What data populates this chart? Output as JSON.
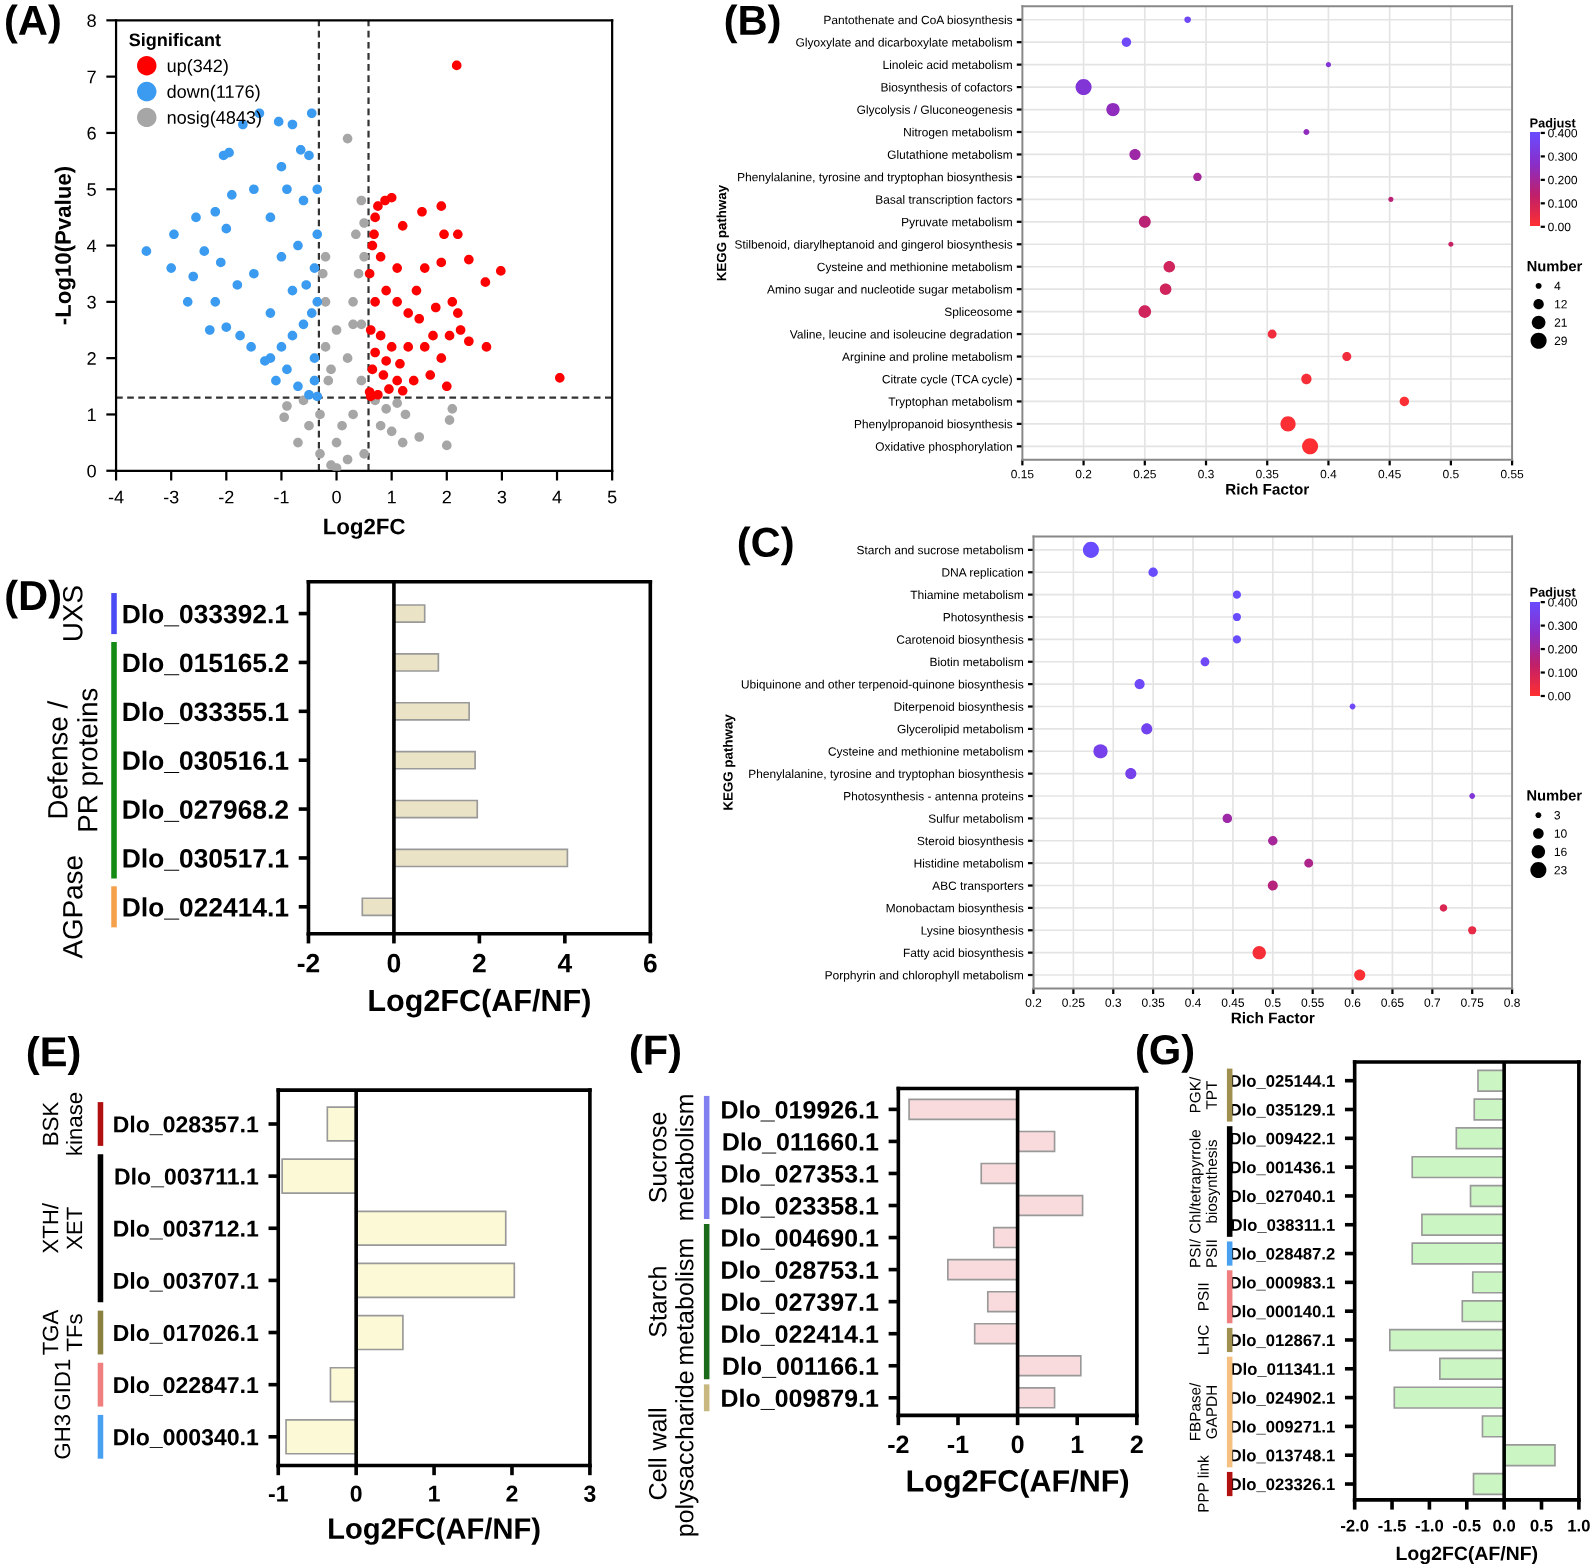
{
  "chart_data": [
    {
      "type": "scatter",
      "annotations": [
        "(A)"
      ],
      "xlabel": "Log2FC",
      "ylabel": "-Log10(Pvalue)",
      "legend_title": "Significant",
      "legend": "top left",
      "marker": "circle",
      "xlim": [
        -4,
        5
      ],
      "xticks": [
        -4,
        -3,
        -2,
        -1,
        0,
        1,
        2,
        3,
        4,
        5
      ],
      "ylim": [
        0,
        8
      ],
      "yticks": [
        0,
        1,
        2,
        3,
        4,
        5,
        6,
        7,
        8
      ],
      "ref_lines": [
        {
          "axis": "x",
          "value": -0.32,
          "color": "#333333",
          "line_style": "dashed"
        },
        {
          "axis": "x",
          "value": 0.58,
          "color": "#333333",
          "line_style": "dashed"
        },
        {
          "axis": "y",
          "value": 1.3,
          "color": "#333333",
          "line_style": "dashed"
        }
      ],
      "series": [
        {
          "name": "up(342)",
          "color": "#ff0000",
          "x": [
            2.18,
            4.05,
            2.98,
            2.7,
            2.4,
            2.72,
            2.25,
            2.2,
            1.95,
            1.9,
            1.55,
            1.2,
            1.0,
            0.88,
            0.75,
            0.7,
            0.65,
            0.6,
            0.8,
            1.1,
            1.6,
            1.9,
            2.1,
            2.2,
            1.8,
            1.5,
            1.3,
            1.1,
            0.9,
            0.7,
            0.62,
            0.8,
            1.0,
            1.3,
            1.6,
            1.9,
            2.05,
            2.4,
            0.65,
            0.85,
            1.1,
            1.4,
            1.7,
            2.0,
            0.6,
            0.75,
            0.95,
            1.2,
            0.7,
            0.9,
            1.15,
            0.62,
            1.75,
            1.45,
            0.68
          ],
          "values": [
            7.2,
            1.65,
            3.55,
            3.35,
            3.75,
            2.2,
            2.5,
            4.2,
            4.2,
            4.7,
            4.6,
            4.35,
            4.85,
            4.8,
            4.7,
            4.5,
            4.0,
            3.5,
            3.8,
            3.6,
            3.6,
            3.7,
            3.0,
            2.8,
            2.9,
            2.7,
            2.8,
            3.0,
            3.2,
            3.0,
            2.5,
            2.4,
            2.2,
            2.2,
            2.2,
            2.0,
            2.4,
            2.3,
            1.8,
            1.7,
            1.6,
            1.6,
            1.7,
            1.5,
            1.4,
            1.35,
            1.45,
            1.42,
            2.1,
            1.95,
            1.9,
            1.32,
            2.4,
            3.2,
            4.2
          ]
        },
        {
          "name": "down(1176)",
          "color": "#3a9bf0",
          "x": [
            -3.45,
            -3.0,
            -2.95,
            -2.7,
            -2.6,
            -2.55,
            -2.3,
            -2.2,
            -2.05,
            -1.95,
            -2.0,
            -1.7,
            -1.75,
            -1.4,
            -1.05,
            -0.8,
            -0.45,
            -0.5,
            -0.65,
            -1.0,
            -1.5,
            -1.9,
            -2.1,
            -2.4,
            -1.8,
            -1.5,
            -1.2,
            -1.2,
            -1.55,
            -1.2,
            -1.0,
            -0.9,
            -0.7,
            -0.5,
            -0.35,
            -0.4,
            -0.45,
            -0.4,
            -0.35,
            -0.6,
            -0.7,
            -0.8,
            -1.0,
            -0.6,
            -0.8,
            -0.35,
            -0.4,
            -1.3,
            -0.9,
            -2.0,
            -2.2,
            -1.1,
            -0.55,
            -0.35
          ],
          "values": [
            3.9,
            3.6,
            4.2,
            3.0,
            3.45,
            4.5,
            2.5,
            4.6,
            5.6,
            5.65,
            2.55,
            6.15,
            2.4,
            6.35,
            6.2,
            6.15,
            6.35,
            5.6,
            5.7,
            5.4,
            5.0,
            4.9,
            3.7,
            3.9,
            3.3,
            3.5,
            4.5,
            2.8,
            2.2,
            2.0,
            2.2,
            1.8,
            1.5,
            1.35,
            1.32,
            2.0,
            2.8,
            3.6,
            4.2,
            4.8,
            4.0,
            3.2,
            3.8,
            2.6,
            2.4,
            5.0,
            1.6,
            1.95,
            5.0,
            4.3,
            3.0,
            1.6,
            3.3,
            3.0
          ]
        },
        {
          "name": "nosig(4843)",
          "color": "#a6a6a6",
          "x": [
            0.2,
            0.45,
            0.5,
            0.35,
            0.5,
            -0.2,
            -0.25,
            0.4,
            0.3,
            -0.2,
            0.0,
            0.45,
            -0.2,
            0.2,
            -0.15,
            0.45,
            0.3,
            -0.3,
            0.0,
            0.2,
            -0.1,
            0.1,
            -0.5,
            0.8,
            1.0,
            1.2,
            1.5,
            1.25,
            1.1,
            2.1,
            2.05,
            2.0,
            -0.9,
            -0.95,
            -0.7,
            -0.6,
            0.7,
            0.9,
            0.5,
            -0.3,
            0.0,
            -0.1,
            0.3
          ],
          "values": [
            5.9,
            4.8,
            4.4,
            4.2,
            3.8,
            3.8,
            3.5,
            3.5,
            3.0,
            3.0,
            2.5,
            2.6,
            2.2,
            2.0,
            1.6,
            1.6,
            1.0,
            1.0,
            0.5,
            0.2,
            0.1,
            0.8,
            0.8,
            0.8,
            0.7,
            0.5,
            0.6,
            1.0,
            1.2,
            1.1,
            0.9,
            0.45,
            1.15,
            0.95,
            0.5,
            1.25,
            1.25,
            1.1,
            0.3,
            0.3,
            0.05,
            1.8,
            2.6
          ]
        }
      ]
    },
    {
      "type": "bubble",
      "orientation": "horizontal",
      "annotations": [
        "(B)"
      ],
      "xlabel": "Rich Factor",
      "ylabel": "KEGG pathway",
      "categories": [
        "Pantothenate and CoA biosynthesis",
        "Glyoxylate and dicarboxylate metabolism",
        "Linoleic acid metabolism",
        "Biosynthesis of cofactors",
        "Glycolysis / Gluconeogenesis",
        "Nitrogen metabolism",
        "Glutathione metabolism",
        "Phenylalanine, tyrosine and tryptophan biosynthesis",
        "Basal transcription factors",
        "Pyruvate metabolism",
        "Stilbenoid, diarylheptanoid and gingerol biosynthesis",
        "Cysteine and methionine metabolism",
        "Amino sugar and nucleotide sugar metabolism",
        "Spliceosome",
        "Valine, leucine and isoleucine degradation",
        "Arginine and proline metabolism",
        "Citrate cycle (TCA cycle)",
        "Tryptophan metabolism",
        "Phenylpropanoid biosynthesis",
        "Oxidative phosphorylation"
      ],
      "values": [
        0.285,
        0.235,
        0.4,
        0.2,
        0.224,
        0.382,
        0.242,
        0.293,
        0.451,
        0.25,
        0.5,
        0.27,
        0.267,
        0.25,
        0.354,
        0.415,
        0.382,
        0.462,
        0.367,
        0.385
      ],
      "sizes": [
        5,
        10,
        3,
        29,
        20,
        4,
        14,
        8,
        3,
        16,
        3,
        15,
        15,
        18,
        9,
        9,
        12,
        10,
        26,
        29
      ],
      "cvalues": [
        0.38,
        0.38,
        0.3,
        0.3,
        0.25,
        0.25,
        0.22,
        0.2,
        0.15,
        0.15,
        0.12,
        0.1,
        0.1,
        0.1,
        0.03,
        0.03,
        0.02,
        0.01,
        0.01,
        0.005
      ],
      "size_legend": [
        4,
        12,
        21,
        29
      ],
      "legend_title": "Number",
      "clabel": "Padjust",
      "clim": [
        0,
        0.4
      ],
      "cticks": [
        {
          "value": 0,
          "label": "0.00"
        },
        {
          "value": 0.1,
          "label": "0.100"
        },
        {
          "value": 0.2,
          "label": "0.200"
        },
        {
          "value": 0.3,
          "label": "0.300"
        },
        {
          "value": 0.4,
          "label": "0.400"
        }
      ],
      "xlim": [
        0.15,
        0.55
      ],
      "xticks": [
        0.15,
        0.2,
        0.25,
        0.3,
        0.35,
        0.4,
        0.45,
        0.5,
        0.55
      ],
      "grid": true
    },
    {
      "type": "bubble",
      "orientation": "horizontal",
      "annotations": [
        "(C)"
      ],
      "xlabel": "Rich Factor",
      "ylabel": "KEGG pathway",
      "categories": [
        "Starch and sucrose metabolism",
        "DNA replication",
        "Thiamine metabolism",
        "Photosynthesis",
        "Carotenoid biosynthesis",
        "Biotin metabolism",
        "Ubiquinone and other terpenoid-quinone biosynthesis",
        "Diterpenoid biosynthesis",
        "Glycerolipid metabolism",
        "Cysteine and methionine metabolism",
        "Phenylalanine, tyrosine and tryptophan biosynthesis",
        "Photosynthesis - antenna proteins",
        "Sulfur metabolism",
        "Steroid biosynthesis",
        "Histidine metabolism",
        "ABC transporters",
        "Monobactam biosynthesis",
        "Lysine biosynthesis",
        "Fatty acid biosynthesis",
        "Porphyrin and chlorophyll metabolism"
      ],
      "values": [
        0.272,
        0.35,
        0.455,
        0.455,
        0.455,
        0.415,
        0.333,
        0.6,
        0.342,
        0.284,
        0.322,
        0.75,
        0.443,
        0.5,
        0.545,
        0.5,
        0.714,
        0.75,
        0.483,
        0.609
      ],
      "sizes": [
        23,
        8,
        6,
        6,
        6,
        7,
        9,
        3,
        11,
        18,
        11,
        3,
        8,
        8,
        7,
        9,
        5,
        6,
        16,
        11
      ],
      "cvalues": [
        0.4,
        0.4,
        0.4,
        0.4,
        0.4,
        0.38,
        0.38,
        0.38,
        0.36,
        0.35,
        0.35,
        0.3,
        0.22,
        0.2,
        0.18,
        0.16,
        0.08,
        0.05,
        0.02,
        0.01
      ],
      "size_legend": [
        3,
        10,
        16,
        23
      ],
      "legend_title": "Number",
      "clabel": "Padjust",
      "clim": [
        0,
        0.4
      ],
      "cticks": [
        {
          "value": 0,
          "label": "0.00"
        },
        {
          "value": 0.1,
          "label": "0.100"
        },
        {
          "value": 0.2,
          "label": "0.200"
        },
        {
          "value": 0.3,
          "label": "0.300"
        },
        {
          "value": 0.4,
          "label": "0.400"
        }
      ],
      "xlim": [
        0.2,
        0.8
      ],
      "xticks": [
        0.2,
        0.25,
        0.3,
        0.35,
        0.4,
        0.45,
        0.5,
        0.55,
        0.6,
        0.65,
        0.7,
        0.75,
        0.8
      ],
      "grid": true
    },
    {
      "type": "bar",
      "orientation": "horizontal",
      "annotations": [
        "(D)",
        "UXS",
        "Defense /\nPR proteins",
        "AGPase"
      ],
      "xlabel": "Log2FC(AF/NF)",
      "categories": [
        "Dlo_033392.1",
        "Dlo_015165.2",
        "Dlo_033355.1",
        "Dlo_030516.1",
        "Dlo_027968.2",
        "Dlo_030517.1",
        "Dlo_022414.1"
      ],
      "values": [
        0.72,
        1.04,
        1.76,
        1.9,
        1.95,
        4.06,
        -0.74
      ],
      "color": "#ebe3c6",
      "xlim": [
        -2,
        6
      ],
      "xticks": [
        -2,
        0,
        2,
        4,
        6
      ]
    },
    {
      "type": "bar",
      "orientation": "horizontal",
      "annotations": [
        "(E)",
        "BSK\nkinase",
        "XTH/\nXET",
        "TGA\nTFs",
        "GID1",
        "GH3"
      ],
      "xlabel": "Log2FC(AF/NF)",
      "categories": [
        "Dlo_028357.1",
        "Dlo_003711.1",
        "Dlo_003712.1",
        "Dlo_003707.1",
        "Dlo_017026.1",
        "Dlo_022847.1",
        "Dlo_000340.1"
      ],
      "values": [
        -0.37,
        -0.95,
        1.92,
        2.03,
        0.6,
        -0.33,
        -0.9
      ],
      "color": "#fcf9d6",
      "xlim": [
        -1,
        3
      ],
      "xticks": [
        -1,
        0,
        1,
        2,
        3
      ]
    },
    {
      "type": "bar",
      "orientation": "horizontal",
      "annotations": [
        "(F)",
        "Sucrose\nmetabolism",
        "Starch\nmetabolism",
        "Cell wall\npolysaccharide"
      ],
      "xlabel": "Log2FC(AF/NF)",
      "categories": [
        "Dlo_019926.1",
        "Dlo_011660.1",
        "Dlo_027353.1",
        "Dlo_023358.1",
        "Dlo_004690.1",
        "Dlo_028753.1",
        "Dlo_027397.1",
        "Dlo_022414.1",
        "Dlo_001166.1",
        "Dlo_009879.1"
      ],
      "values": [
        -1.82,
        0.62,
        -0.61,
        1.09,
        -0.4,
        -1.17,
        -0.5,
        -0.72,
        1.06,
        0.62
      ],
      "color": "#f9dadd",
      "xlim": [
        -2,
        2
      ],
      "xticks": [
        -2,
        -1,
        0,
        1,
        2
      ]
    },
    {
      "type": "bar",
      "orientation": "horizontal",
      "annotations": [
        "(G)",
        "PGK/\nTPT",
        "Chl/tetrapyrrole\nbiosynthesis",
        "PSI/\nPSII",
        "PSII",
        "LHC",
        "FBPase/\nGAPDH",
        "PPP link"
      ],
      "xlabel": "Log2FC(AF/NF)",
      "categories": [
        "Dlo_025144.1",
        "Dlo_035129.1",
        "Dlo_009422.1",
        "Dlo_001436.1",
        "Dlo_027040.1",
        "Dlo_038311.1",
        "Dlo_028487.2",
        "Dlo_000983.1",
        "Dlo_000140.1",
        "Dlo_012867.1",
        "Dlo_011341.1",
        "Dlo_024902.1",
        "Dlo_009271.1",
        "Dlo_013748.1",
        "Dlo_023326.1"
      ],
      "values": [
        -0.35,
        -0.4,
        -0.64,
        -1.23,
        -0.45,
        -1.1,
        -1.23,
        -0.42,
        -0.56,
        -1.53,
        -0.86,
        -1.47,
        -0.29,
        0.68,
        -0.41
      ],
      "color": "#ccf5c4",
      "xlim": [
        -2.0,
        1.0
      ],
      "xticks": [
        {
          "value": -2,
          "label": "-2.0"
        },
        {
          "value": -1.5,
          "label": "-1.5"
        },
        {
          "value": -1,
          "label": "-1.0"
        },
        {
          "value": -0.5,
          "label": "-0.5"
        },
        {
          "value": 0,
          "label": "0.0"
        },
        {
          "value": 0.5,
          "label": "0.5"
        },
        {
          "value": 1,
          "label": "1.0"
        }
      ]
    }
  ]
}
